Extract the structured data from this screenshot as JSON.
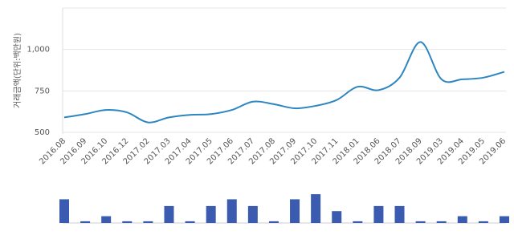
{
  "chart_data": [
    {
      "type": "line",
      "y_label": "거래금액(단위:백만원)",
      "categories": [
        "2016.08",
        "2016.09",
        "2016.10",
        "2016.12",
        "2017.02",
        "2017.03",
        "2017.04",
        "2017.05",
        "2017.06",
        "2017.07",
        "2017.08",
        "2017.09",
        "2017.10",
        "2017.11",
        "2018.01",
        "2018.06",
        "2018.07",
        "2018.09",
        "2019.03",
        "2019.04",
        "2019.05",
        "2019.06"
      ],
      "values": [
        590,
        610,
        635,
        620,
        560,
        590,
        605,
        610,
        635,
        685,
        670,
        645,
        660,
        695,
        775,
        755,
        830,
        1045,
        820,
        820,
        830,
        865
      ],
      "color": "#2e86c1",
      "ylim": [
        500,
        1250
      ],
      "yticks": [
        500,
        750,
        {
          "value": 1000,
          "label": "1,000"
        }
      ],
      "grid": true
    },
    {
      "type": "bar",
      "values": [
        14,
        1,
        4,
        1,
        1,
        10,
        1,
        10,
        14,
        10,
        1,
        14,
        17,
        7,
        1,
        10,
        10,
        1,
        1,
        4,
        1,
        4
      ],
      "color": "#3a5bb0",
      "ylim": [
        0,
        18
      ]
    }
  ]
}
